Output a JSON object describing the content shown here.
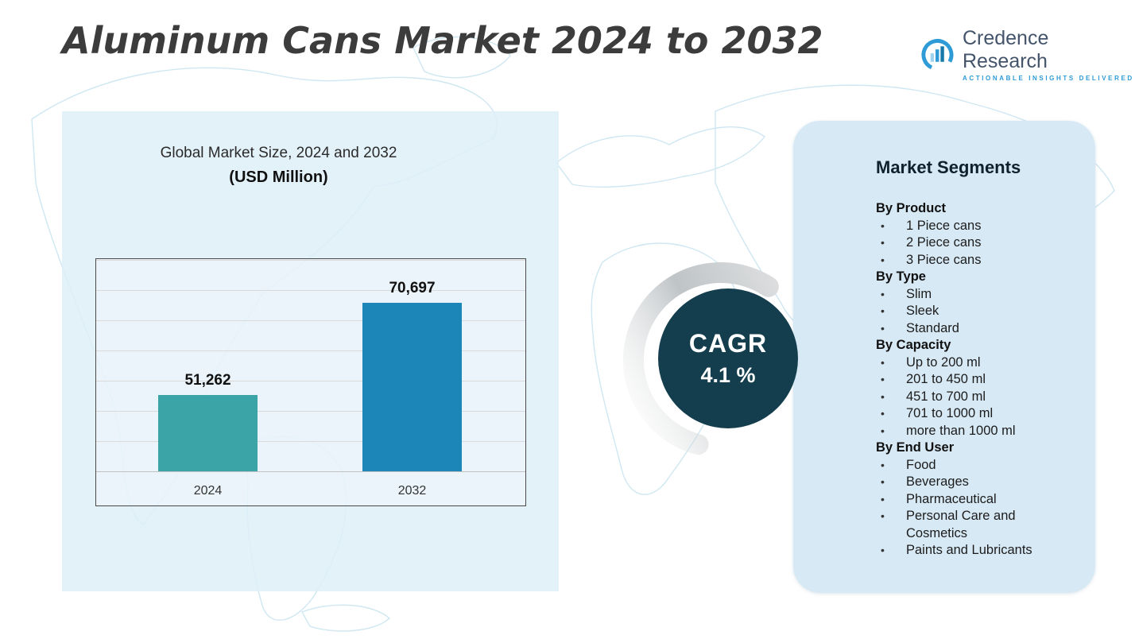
{
  "header": {
    "title": "Aluminum Cans Market 2024 to 2032",
    "logo": {
      "name": "Credence Research",
      "tagline": "Actionable Insights Delivered",
      "brand_color": "#2e9bd6"
    }
  },
  "chart_panel": {
    "title_line1": "Global Market Size, 2024 and 2032",
    "title_line2": "(USD Million)"
  },
  "chart_data": {
    "type": "bar",
    "title": "Global Market Size, 2024 and 2032 (USD Million)",
    "xlabel": "",
    "ylabel": "",
    "unit": "USD Million",
    "categories": [
      "2024",
      "2032"
    ],
    "values": [
      51262,
      70697
    ],
    "value_labels": [
      "51,262",
      "70,697"
    ],
    "bar_colors": [
      "#3ba4a6",
      "#1d86b8"
    ],
    "ylim": [
      35000,
      80000
    ],
    "grid": true,
    "legend": false
  },
  "cagr": {
    "label": "CAGR",
    "value": "4.1 %",
    "badge_color": "#143e4e"
  },
  "segments": {
    "title": "Market Segments",
    "groups": [
      {
        "heading": "By Product",
        "items": [
          "1 Piece cans",
          "2 Piece cans",
          "3 Piece cans"
        ]
      },
      {
        "heading": "By Type",
        "items": [
          "Slim",
          "Sleek",
          "Standard"
        ]
      },
      {
        "heading": "By Capacity",
        "items": [
          "Up to 200 ml",
          "201 to 450 ml",
          "451 to 700 ml",
          "701 to 1000 ml",
          "more than 1000 ml"
        ]
      },
      {
        "heading": "By End User",
        "items": [
          "Food",
          "Beverages",
          "Pharmaceutical",
          "Personal Care and Cosmetics",
          "Paints and Lubricants"
        ]
      }
    ]
  }
}
